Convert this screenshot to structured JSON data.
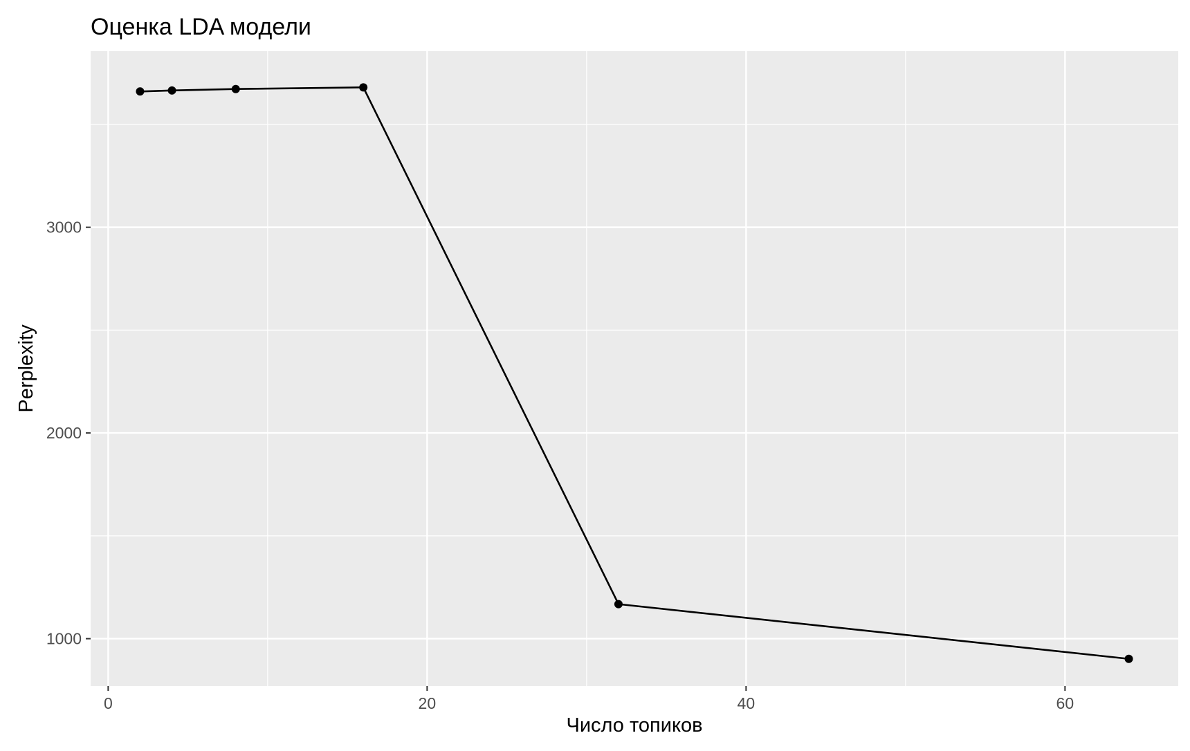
{
  "chart_data": {
    "type": "line",
    "title": "Оценка LDA модели",
    "xlabel": "Число топиков",
    "ylabel": "Perplexity",
    "x": [
      2,
      4,
      8,
      16,
      32,
      64
    ],
    "series": [
      {
        "values": [
          3660,
          3665,
          3672,
          3680,
          1168,
          902
        ]
      }
    ],
    "xlim": [
      -1.1,
      67.1
    ],
    "ylim": [
      770,
      3856
    ],
    "x_ticks": [
      0,
      20,
      40,
      60
    ],
    "x_tick_labels": [
      "0",
      "20",
      "40",
      "60"
    ],
    "y_ticks": [
      1000,
      2000,
      3000
    ],
    "y_tick_labels": [
      "1000",
      "2000",
      "3000"
    ],
    "x_minor_ticks": [
      10,
      30,
      50
    ],
    "y_minor_ticks": [
      1500,
      2500,
      3500
    ],
    "grid": true,
    "legend": "none",
    "colors": {
      "panel_background": "#ebebeb",
      "grid": "#ffffff",
      "line": "#000000",
      "point": "#000000",
      "tick_text": "#4d4d4d",
      "tick_mark": "#333333"
    }
  }
}
